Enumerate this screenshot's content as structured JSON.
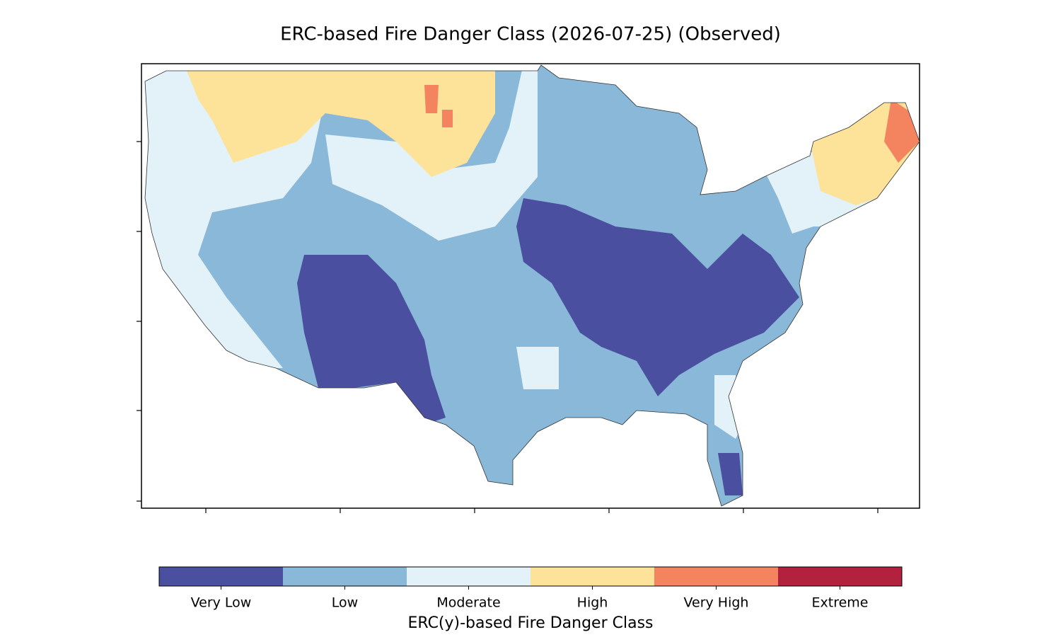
{
  "title": "ERC-based Fire Danger Class (2026-07-25) (Observed)",
  "colorbar": {
    "label": "ERC(y)-based Fire Danger Class",
    "classes": [
      {
        "name": "Very Low",
        "color": "#4a4fa0"
      },
      {
        "name": "Low",
        "color": "#8ab8d8"
      },
      {
        "name": "Moderate",
        "color": "#e3f2f8"
      },
      {
        "name": "High",
        "color": "#fde29a"
      },
      {
        "name": "Very High",
        "color": "#f4845f"
      },
      {
        "name": "Extreme",
        "color": "#b2213e"
      }
    ]
  }
}
